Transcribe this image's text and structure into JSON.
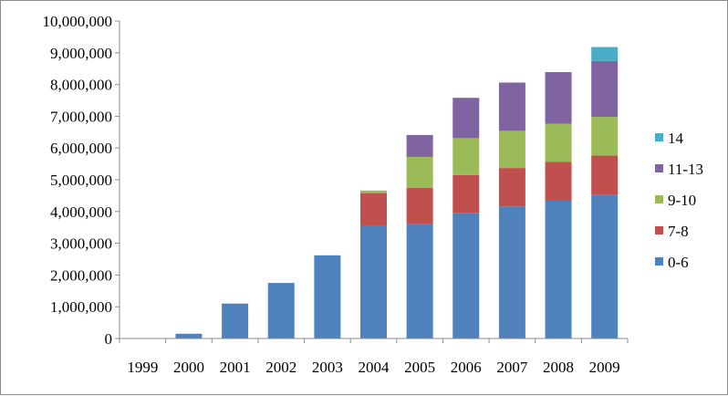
{
  "chart_data": {
    "type": "bar",
    "stacked": true,
    "title": "",
    "xlabel": "",
    "ylabel": "",
    "ylim": [
      0,
      10000000
    ],
    "yticks": [
      0,
      1000000,
      2000000,
      3000000,
      4000000,
      5000000,
      6000000,
      7000000,
      8000000,
      9000000,
      10000000
    ],
    "ytick_labels": [
      "0",
      "1,000,000",
      "2,000,000",
      "3,000,000",
      "4,000,000",
      "5,000,000",
      "6,000,000",
      "7,000,000",
      "8,000,000",
      "9,000,000",
      "10,000,000"
    ],
    "grid": false,
    "legend_position": "right",
    "categories": [
      "1999",
      "2000",
      "2001",
      "2002",
      "2003",
      "2004",
      "2005",
      "2006",
      "2007",
      "2008",
      "2009"
    ],
    "series": [
      {
        "name": "0-6",
        "color": "#4f81bd",
        "values": [
          0,
          150000,
          1100000,
          1750000,
          2620000,
          3550000,
          3610000,
          3960000,
          4160000,
          4340000,
          4520000
        ]
      },
      {
        "name": "7-8",
        "color": "#c0504d",
        "values": [
          0,
          0,
          0,
          0,
          0,
          1030000,
          1130000,
          1190000,
          1210000,
          1230000,
          1240000
        ]
      },
      {
        "name": "9-10",
        "color": "#9bbb59",
        "values": [
          0,
          0,
          0,
          0,
          0,
          80000,
          980000,
          1160000,
          1170000,
          1190000,
          1220000
        ]
      },
      {
        "name": "11-13",
        "color": "#8064a2",
        "values": [
          0,
          0,
          0,
          0,
          0,
          0,
          690000,
          1270000,
          1520000,
          1630000,
          1760000
        ]
      },
      {
        "name": "14",
        "color": "#4bacc6",
        "values": [
          0,
          0,
          0,
          0,
          0,
          0,
          0,
          0,
          0,
          0,
          440000
        ]
      }
    ],
    "legend_order": [
      "14",
      "11-13",
      "9-10",
      "7-8",
      "0-6"
    ]
  }
}
